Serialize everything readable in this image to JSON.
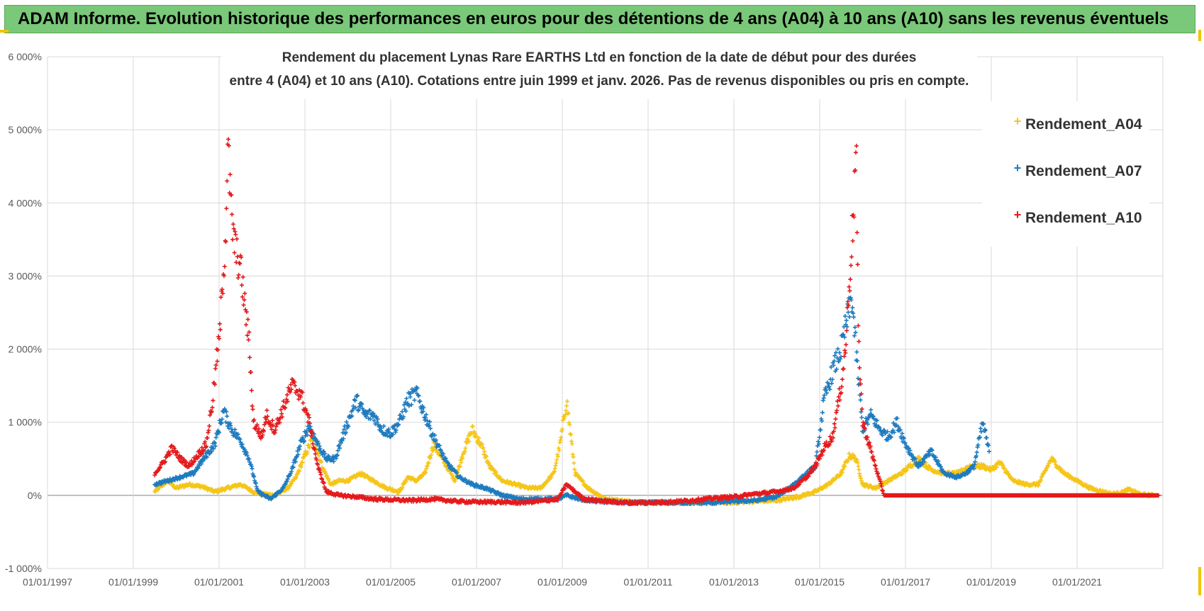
{
  "banner": {
    "text": "ADAM Informe. Evolution historique des performances en euros pour des détentions de 4 ans (A04) à 10 ans (A10) sans les revenus éventuels"
  },
  "chart_data": {
    "type": "scatter",
    "title_line1": "Rendement du placement Lynas Rare EARTHS Ltd en fonction de la date de début pour des durées",
    "title_line2": "entre 4 (A04) et 10 ans (A10).  Cotations entre juin 1999 et janv. 2026.  Pas de revenus disponibles ou pris en compte.",
    "xlabel": "",
    "ylabel": "",
    "x_unit": "year",
    "xlim": [
      1997.0,
      2023.0
    ],
    "ylim": [
      -1000,
      6000
    ],
    "y_ticks": [
      -1000,
      0,
      1000,
      2000,
      3000,
      4000,
      5000,
      6000
    ],
    "y_tick_labels": [
      "-1 000%",
      "0%",
      "1 000%",
      "2 000%",
      "3 000%",
      "4 000%",
      "5 000%",
      "6 000%"
    ],
    "x_ticks": [
      1997,
      1999,
      2001,
      2003,
      2005,
      2007,
      2009,
      2011,
      2013,
      2015,
      2017,
      2019,
      2021
    ],
    "x_tick_labels": [
      "01/01/1997",
      "01/01/1999",
      "01/01/2001",
      "01/01/2003",
      "01/01/2005",
      "01/01/2007",
      "01/01/2009",
      "01/01/2011",
      "01/01/2013",
      "01/01/2015",
      "01/01/2017",
      "01/01/2019",
      "01/01/2021"
    ],
    "grid": true,
    "legend_position": "top-right",
    "marker": "+",
    "series": [
      {
        "name": "Rendement_A04",
        "color": "#f5c518",
        "x": [
          1999.5,
          1999.8,
          2000.0,
          2000.3,
          2000.6,
          2000.9,
          2001.2,
          2001.5,
          2001.8,
          2002.0,
          2002.3,
          2002.6,
          2002.8,
          2003.0,
          2003.2,
          2003.4,
          2003.6,
          2003.8,
          2004.0,
          2004.3,
          2004.6,
          2004.9,
          2005.2,
          2005.4,
          2005.6,
          2005.8,
          2006.0,
          2006.2,
          2006.5,
          2006.7,
          2006.9,
          2007.1,
          2007.3,
          2007.6,
          2007.9,
          2008.2,
          2008.5,
          2008.8,
          2008.95,
          2009.1,
          2009.3,
          2009.6,
          2010.0,
          2010.5,
          2011.0,
          2011.5,
          2012.0,
          2012.5,
          2013.0,
          2013.5,
          2014.0,
          2014.5,
          2014.9,
          2015.2,
          2015.5,
          2015.7,
          2015.85,
          2016.0,
          2016.3,
          2016.6,
          2016.9,
          2017.1,
          2017.3,
          2017.6,
          2017.9,
          2018.2,
          2018.5,
          2018.8,
          2019.0,
          2019.2,
          2019.5,
          2019.8,
          2020.1,
          2020.4,
          2020.7,
          2021.0,
          2021.3,
          2021.6,
          2021.8,
          2022.0,
          2022.2,
          2022.5,
          2022.8
        ],
        "y": [
          50,
          200,
          100,
          150,
          120,
          50,
          100,
          150,
          50,
          20,
          0,
          100,
          250,
          550,
          800,
          400,
          150,
          200,
          200,
          300,
          200,
          100,
          50,
          250,
          200,
          300,
          700,
          500,
          200,
          600,
          900,
          700,
          400,
          200,
          150,
          100,
          100,
          300,
          700,
          1300,
          300,
          100,
          -50,
          -80,
          -100,
          -100,
          -100,
          -100,
          -100,
          -80,
          -70,
          -20,
          50,
          150,
          300,
          550,
          500,
          150,
          100,
          200,
          300,
          400,
          500,
          350,
          300,
          300,
          400,
          400,
          350,
          450,
          200,
          150,
          150,
          500,
          300,
          200,
          100,
          50,
          20,
          30,
          80,
          10,
          0
        ]
      },
      {
        "name": "Rendement_A07",
        "color": "#1f7bbf",
        "x": [
          1999.5,
          1999.8,
          2000.1,
          2000.4,
          2000.7,
          2000.9,
          2001.1,
          2001.3,
          2001.5,
          2001.7,
          2001.9,
          2002.2,
          2002.5,
          2002.7,
          2002.9,
          2003.1,
          2003.3,
          2003.5,
          2003.7,
          2004.0,
          2004.2,
          2004.4,
          2004.6,
          2004.8,
          2005.0,
          2005.2,
          2005.4,
          2005.6,
          2005.8,
          2006.0,
          2006.3,
          2006.6,
          2006.9,
          2007.2,
          2007.6,
          2008.0,
          2008.5,
          2008.9,
          2009.1,
          2009.4,
          2009.8,
          2010.5,
          2011.0,
          2011.5,
          2012.0,
          2012.5,
          2013.0,
          2013.5,
          2014.0,
          2014.5,
          2014.9,
          2015.1,
          2015.3,
          2015.5,
          2015.6,
          2015.75,
          2015.9,
          2016.0,
          2016.2,
          2016.4,
          2016.6,
          2016.8,
          2017.0,
          2017.3,
          2017.6,
          2017.9,
          2018.2,
          2018.4,
          2018.6,
          2018.8,
          2018.95
        ],
        "y": [
          150,
          200,
          250,
          300,
          550,
          700,
          1150,
          900,
          750,
          500,
          50,
          -50,
          100,
          350,
          700,
          950,
          700,
          500,
          500,
          1000,
          1300,
          1100,
          1100,
          900,
          850,
          1000,
          1300,
          1400,
          1100,
          800,
          450,
          250,
          150,
          100,
          0,
          -50,
          -50,
          -50,
          0,
          -50,
          -80,
          -100,
          -100,
          -100,
          -100,
          -100,
          -80,
          -70,
          -20,
          200,
          400,
          1300,
          1700,
          2000,
          2300,
          2700,
          1600,
          900,
          1100,
          900,
          800,
          1000,
          700,
          400,
          600,
          300,
          250,
          300,
          400,
          1000,
          600
        ]
      },
      {
        "name": "Rendement_A10",
        "color": "#e41a1c",
        "x": [
          1999.5,
          1999.7,
          1999.9,
          2000.1,
          2000.3,
          2000.5,
          2000.7,
          2000.85,
          2000.95,
          2001.0,
          2001.1,
          2001.15,
          2001.2,
          2001.3,
          2001.4,
          2001.5,
          2001.6,
          2001.7,
          2001.8,
          2001.9,
          2002.0,
          2002.1,
          2002.3,
          2002.5,
          2002.7,
          2002.9,
          2003.1,
          2003.3,
          2003.5,
          2003.8,
          2004.2,
          2004.6,
          2005.0,
          2005.5,
          2006.0,
          2006.5,
          2007.0,
          2007.5,
          2008.0,
          2008.5,
          2008.9,
          2009.1,
          2009.5,
          2010.0,
          2010.5,
          2011.0,
          2011.5,
          2012.0,
          2012.5,
          2013.0,
          2013.5,
          2014.0,
          2014.4,
          2014.7,
          2014.9,
          2015.1,
          2015.3,
          2015.5,
          2015.6,
          2015.7,
          2015.8,
          2015.85,
          2015.9,
          2016.0,
          2016.5,
          2017.0,
          2017.5,
          2018.0,
          2018.5,
          2019.0,
          2019.5,
          2020.0,
          2020.5,
          2021.0,
          2021.5,
          2022.0,
          2022.5,
          2022.9
        ],
        "y": [
          300,
          450,
          650,
          500,
          400,
          550,
          700,
          1300,
          1900,
          2100,
          3100,
          3500,
          4800,
          3700,
          3300,
          3100,
          2600,
          2100,
          1000,
          900,
          800,
          1100,
          900,
          1200,
          1500,
          1400,
          1000,
          400,
          50,
          0,
          -20,
          -50,
          -60,
          -70,
          -50,
          -80,
          -90,
          -90,
          -100,
          -80,
          -50,
          150,
          -50,
          -80,
          -100,
          -100,
          -90,
          -70,
          -40,
          -20,
          20,
          50,
          100,
          250,
          400,
          650,
          800,
          1500,
          2000,
          3000,
          4000,
          4800,
          2200,
          1000,
          0,
          0,
          0,
          0,
          0,
          0,
          0,
          0,
          0,
          0,
          0,
          0,
          0,
          0
        ]
      }
    ]
  }
}
